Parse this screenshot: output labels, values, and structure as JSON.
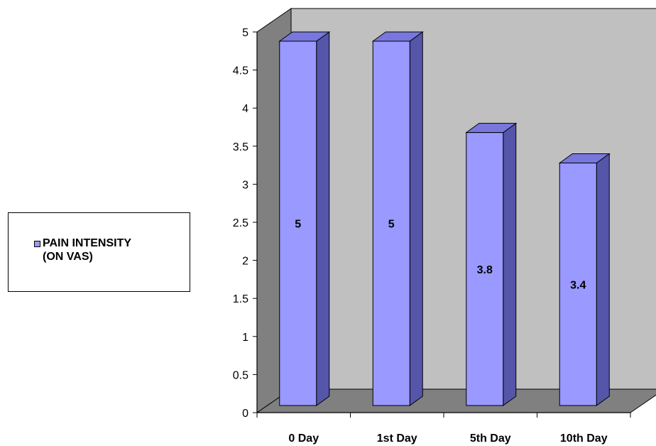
{
  "chart_data": {
    "type": "bar",
    "categories": [
      "0 Day",
      "1st Day",
      "5th Day",
      "10th Day"
    ],
    "series": [
      {
        "name": "PAIN INTENSITY\n(ON VAS)",
        "values": [
          5,
          5,
          3.8,
          3.4
        ]
      }
    ],
    "data_labels": [
      "5",
      "5",
      "3.8",
      "3.4"
    ],
    "y_ticks": [
      "0",
      "0.5",
      "1",
      "1.5",
      "2",
      "2.5",
      "3",
      "3.5",
      "4",
      "4.5",
      "5"
    ],
    "ylim": [
      0,
      5
    ],
    "grid": false,
    "legend_position": "left",
    "style_3d": true,
    "colors": {
      "bar_front": "#9999ff",
      "bar_side": "#5555aa",
      "bar_top": "#7777dd",
      "back_wall": "#c0c0c0",
      "side_wall": "#808080",
      "floor": "#808080"
    }
  }
}
